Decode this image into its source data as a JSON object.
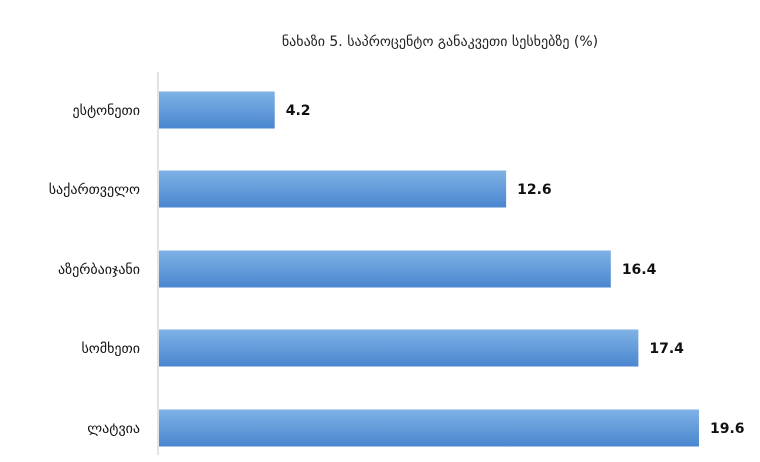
{
  "chart_data": {
    "type": "bar",
    "orientation": "horizontal",
    "title": "ნახაზი 5. საპროცენტო განაკვეთი სესხებზე (%)",
    "categories": [
      "ესტონეთი",
      "საქართველო",
      "აზერბაიჯანი",
      "სომხეთი",
      "ლატვია"
    ],
    "values": [
      4.2,
      12.6,
      16.4,
      17.4,
      19.6
    ],
    "data_labels": [
      "4.2",
      "12.6",
      "16.4",
      "17.4",
      "19.6"
    ],
    "xlim": [
      0,
      20
    ],
    "grid": false,
    "legend": "none",
    "colors": {
      "bar_top": "#7fb2e6",
      "bar_bottom": "#4a86cf",
      "axis": "#c8c8c8"
    }
  }
}
